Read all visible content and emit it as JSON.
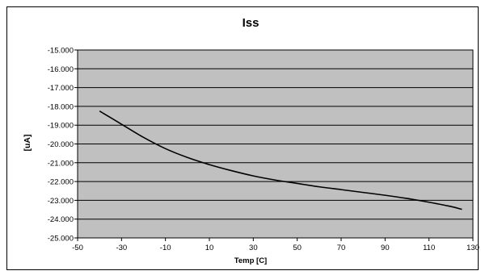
{
  "chart_data": {
    "type": "line",
    "title": "Iss",
    "xlabel": "Temp [C]",
    "ylabel": "[uA]",
    "xlim": [
      -50,
      130
    ],
    "ylim": [
      -25,
      -15
    ],
    "x_ticks": [
      "-50",
      "-30",
      "-10",
      "10",
      "30",
      "50",
      "70",
      "90",
      "110",
      "130"
    ],
    "y_ticks": [
      "-15.000",
      "-16.000",
      "-17.000",
      "-18.000",
      "-19.000",
      "-20.000",
      "-21.000",
      "-22.000",
      "-23.000",
      "-24.000",
      "-25.000"
    ],
    "grid": "horizontal",
    "plot_background": "#c0c0c0",
    "line_color": "#000000",
    "series": [
      {
        "x": [
          -40,
          -30,
          -20,
          -10,
          0,
          10,
          20,
          30,
          40,
          50,
          60,
          70,
          80,
          90,
          100,
          110,
          120,
          125
        ],
        "y": [
          -18.25,
          -18.95,
          -19.65,
          -20.25,
          -20.72,
          -21.1,
          -21.42,
          -21.7,
          -21.92,
          -22.1,
          -22.28,
          -22.43,
          -22.58,
          -22.73,
          -22.9,
          -23.1,
          -23.33,
          -23.48
        ]
      }
    ]
  }
}
